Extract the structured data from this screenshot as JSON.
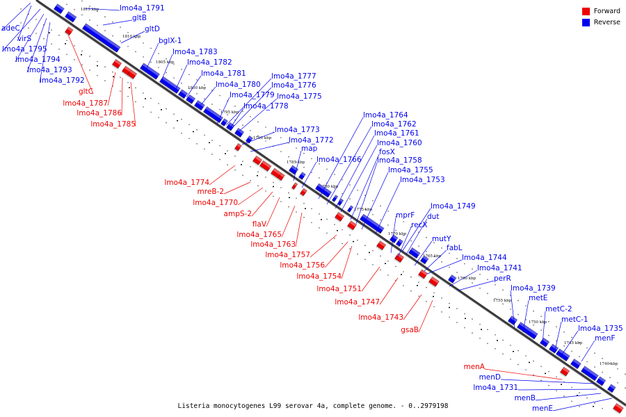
{
  "legend": {
    "items": [
      {
        "label": "Forward",
        "color": "#ee0000"
      },
      {
        "label": "Reverse",
        "color": "#0000ee"
      }
    ]
  },
  "caption": "Listeria monocytogenes L99 serovar 4a, complete genome. - 0..2979198",
  "ticks": [
    "1815 kbp",
    "1810 kbp",
    "1805 kbp",
    "1800 kbp",
    "1795 kbp",
    "1790 kbp",
    "1785 kbp",
    "1780 kbp",
    "1775 kbp",
    "1770 kbp",
    "1765 kbp",
    "1760 kbp",
    "1755 kbp",
    "1750 kbp",
    "1745 kbp",
    "1740 kbp"
  ],
  "reverse_genes": [
    "lmo4a_1791",
    "gltB",
    "gltD",
    "adeC",
    "virS",
    "lmo4a_1795",
    "lmo4a_1794",
    "lmo4a_1793",
    "lmo4a_1792",
    "bglX-1",
    "lmo4a_1783",
    "lmo4a_1782",
    "lmo4a_1781",
    "lmo4a_1780",
    "lmo4a_1779",
    "lmo4a_1778",
    "lmo4a_1777",
    "lmo4a_1776",
    "lmo4a_1775",
    "lmo4a_1773",
    "lmo4a_1772",
    "map",
    "lmo4a_1766",
    "lmo4a_1764",
    "lmo4a_1762",
    "lmo4a_1761",
    "lmo4a_1760",
    "fosX",
    "lmo4a_1758",
    "lmo4a_1755",
    "lmo4a_1753",
    "mprF",
    "recX",
    "lmo4a_1749",
    "dut",
    "mutY",
    "fabL",
    "lmo4a_1744",
    "lmo4a_1741",
    "perR",
    "lmo4a_1739",
    "metE",
    "metC-2",
    "metC-1",
    "lmo4a_1735",
    "menF",
    "menD",
    "lmo4a_1731",
    "menB",
    "menE"
  ],
  "forward_genes": [
    "gltC",
    "lmo4a_1787",
    "lmo4a_1786",
    "lmo4a_1785",
    "lmo4a_1774",
    "mreB-2",
    "lmo4a_1770",
    "ampS-2",
    "flaV",
    "lmo4a_1765",
    "lmo4a_1763",
    "lmo4a_1757",
    "lmo4a_1756",
    "lmo4a_1754",
    "lmo4a_1751",
    "lmo4a_1747",
    "lmo4a_1743",
    "gsaB",
    "menA"
  ]
}
